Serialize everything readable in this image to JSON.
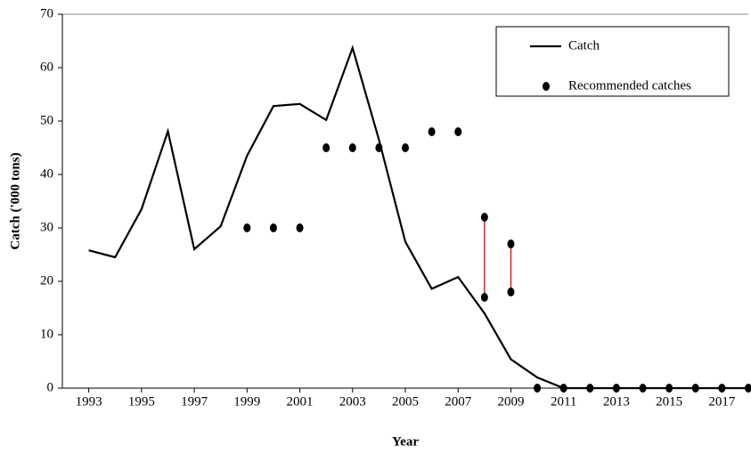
{
  "chart_data": {
    "type": "line",
    "x_label": "Year",
    "y_label": "Catch ('000 tons)",
    "x": [
      1993,
      1994,
      1995,
      1996,
      1997,
      1998,
      1999,
      2000,
      2001,
      2002,
      2003,
      2004,
      2005,
      2006,
      2007,
      2008,
      2009,
      2010,
      2011,
      2012,
      2013,
      2014,
      2015,
      2016,
      2017,
      2018
    ],
    "series": [
      {
        "name": "Catch",
        "color": "#000000",
        "marker": "none",
        "values": [
          25.8,
          24.5,
          33.5,
          48.1,
          26.0,
          30.3,
          43.5,
          52.8,
          53.2,
          50.2,
          63.7,
          46.5,
          27.4,
          18.6,
          20.8,
          14.0,
          5.4,
          2.0,
          0,
          0,
          0,
          0,
          0,
          0,
          0,
          0
        ]
      },
      {
        "name": "Recommended catches",
        "color": "#000000",
        "marker": "dot",
        "range_color": "#e00000",
        "values": [
          null,
          null,
          null,
          null,
          null,
          null,
          30,
          30,
          30,
          45,
          45,
          45,
          45,
          48,
          48,
          32,
          27,
          0,
          0,
          0,
          0,
          0,
          0,
          0,
          0,
          0
        ],
        "range_low": [
          null,
          null,
          null,
          null,
          null,
          null,
          null,
          null,
          null,
          null,
          null,
          null,
          null,
          null,
          null,
          17,
          18,
          null,
          null,
          null,
          null,
          null,
          null,
          null,
          null,
          null
        ]
      }
    ],
    "xlim": [
      1992,
      2018
    ],
    "xticks": [
      1993,
      1995,
      1997,
      1999,
      2001,
      2003,
      2005,
      2007,
      2009,
      2011,
      2013,
      2015,
      2017
    ],
    "ylim": [
      0,
      70
    ],
    "yticks": [
      0,
      10,
      20,
      30,
      40,
      50,
      60,
      70
    ],
    "legend": "upper right"
  }
}
